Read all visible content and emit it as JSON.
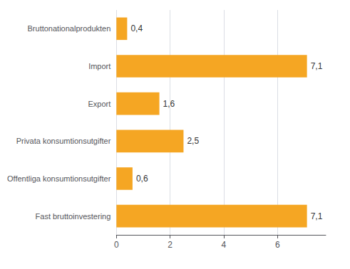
{
  "chart_data": {
    "type": "bar",
    "orientation": "horizontal",
    "categories": [
      "Fast bruttoinvestering",
      "Offentliga konsumtionsutgifter",
      "Privata konsumtionsutgifter",
      "Export",
      "Import",
      "Bruttonationalprodukten"
    ],
    "values": [
      7.1,
      0.6,
      2.5,
      1.6,
      7.1,
      0.4
    ],
    "value_labels": [
      "7,1",
      "0,6",
      "2,5",
      "1,6",
      "7,1",
      "0,4"
    ],
    "data_labels": true,
    "color": "#F5A623",
    "xlim": [
      0,
      7.8
    ],
    "xticks": [
      0,
      2,
      4,
      6
    ],
    "grid": true
  }
}
